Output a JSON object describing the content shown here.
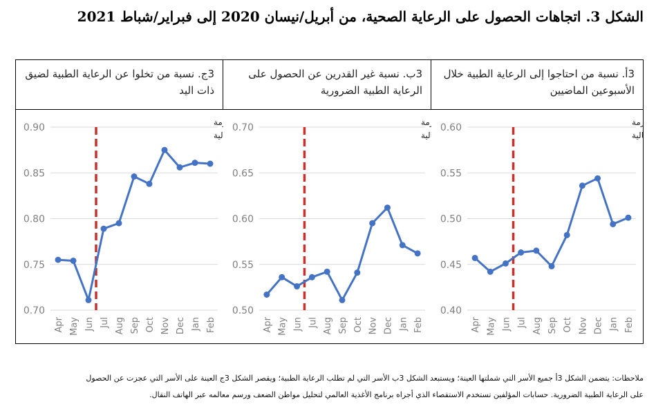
{
  "figure_title": "الشكل 3. اتجاهات الحصول على الرعاية الصحية، من أبريل/نيسان 2020 إلى فبراير/شباط 2021",
  "notes": [
    "ملاحظات: يتضمن الشكل 3أ جميع الأسر التي شملتها العينة؛ ويستبعد الشكل 3ب الأسر التي لم تطلب الرعاية الطبية؛ ويقصر الشكل 3ج العينة على الأسر التي عجزت عن الحصول",
    "على الرعاية الطبية الضرورية. حسابات المؤلفين تستخدم الاستقصاء الذي أجراه برنامج الأغذية العالمي لتحليل مواطن الضعف ورسم معالمه عبر الهاتف النقال."
  ],
  "colors": {
    "line": "#4472c4",
    "marker": "#4472c4",
    "crisis_line": "#c9302c",
    "grid": "#d9d9d9",
    "tick_text": "#7f7f7f"
  },
  "chart_data": [
    {
      "type": "line",
      "title": "3ج. نسبة من تخلوا عن الرعاية الطبية لضيق ذات اليد",
      "annotation": [
        "تسارع وتيرة أزمة",
        "الأمن الغذائي الحالية"
      ],
      "categories": [
        "Apr",
        "May",
        "Jun",
        "Jul",
        "Aug",
        "Sep",
        "Oct",
        "Nov",
        "Dec",
        "Jan",
        "Feb"
      ],
      "values": [
        0.755,
        0.754,
        0.711,
        0.789,
        0.795,
        0.846,
        0.838,
        0.875,
        0.856,
        0.861,
        0.86
      ],
      "yticks": [
        "0.70",
        "0.75",
        "0.80",
        "0.85",
        "0.90"
      ],
      "ylim": [
        0.7,
        0.9
      ],
      "crisis_after_index": 2,
      "grid": true
    },
    {
      "type": "line",
      "title": "3ب. نسبة غير القدرين عن الحصول على الرعاية الطبية الضرورية",
      "annotation": [
        "تسارع وتيرة أزمة",
        "الأمن الغذائي الحالية"
      ],
      "categories": [
        "Apr",
        "May",
        "Jun",
        "Jul",
        "Aug",
        "Sep",
        "Oct",
        "Nov",
        "Dec",
        "Jan",
        "Feb"
      ],
      "values": [
        0.517,
        0.536,
        0.526,
        0.536,
        0.542,
        0.511,
        0.541,
        0.595,
        0.612,
        0.571,
        0.562
      ],
      "yticks": [
        "0.50",
        "0.55",
        "0.60",
        "0.65",
        "0.70"
      ],
      "ylim": [
        0.5,
        0.7
      ],
      "crisis_after_index": 2,
      "grid": true
    },
    {
      "type": "line",
      "title": "3أ. نسبة من احتاجوا إلى الرعاية الطبية خلال الأسبوعين الماضيين",
      "annotation": [
        "تسارع وتيرة أزمة",
        "الأمن الغذائي الحالية"
      ],
      "categories": [
        "Apr",
        "May",
        "Jun",
        "Jul",
        "Aug",
        "Sep",
        "Oct",
        "Nov",
        "Dec",
        "Jan",
        "Feb"
      ],
      "values": [
        0.457,
        0.442,
        0.451,
        0.463,
        0.465,
        0.448,
        0.482,
        0.536,
        0.544,
        0.494,
        0.501
      ],
      "yticks": [
        "0.40",
        "0.45",
        "0.50",
        "0.55",
        "0.60"
      ],
      "ylim": [
        0.4,
        0.6
      ],
      "crisis_after_index": 2,
      "grid": true
    }
  ]
}
